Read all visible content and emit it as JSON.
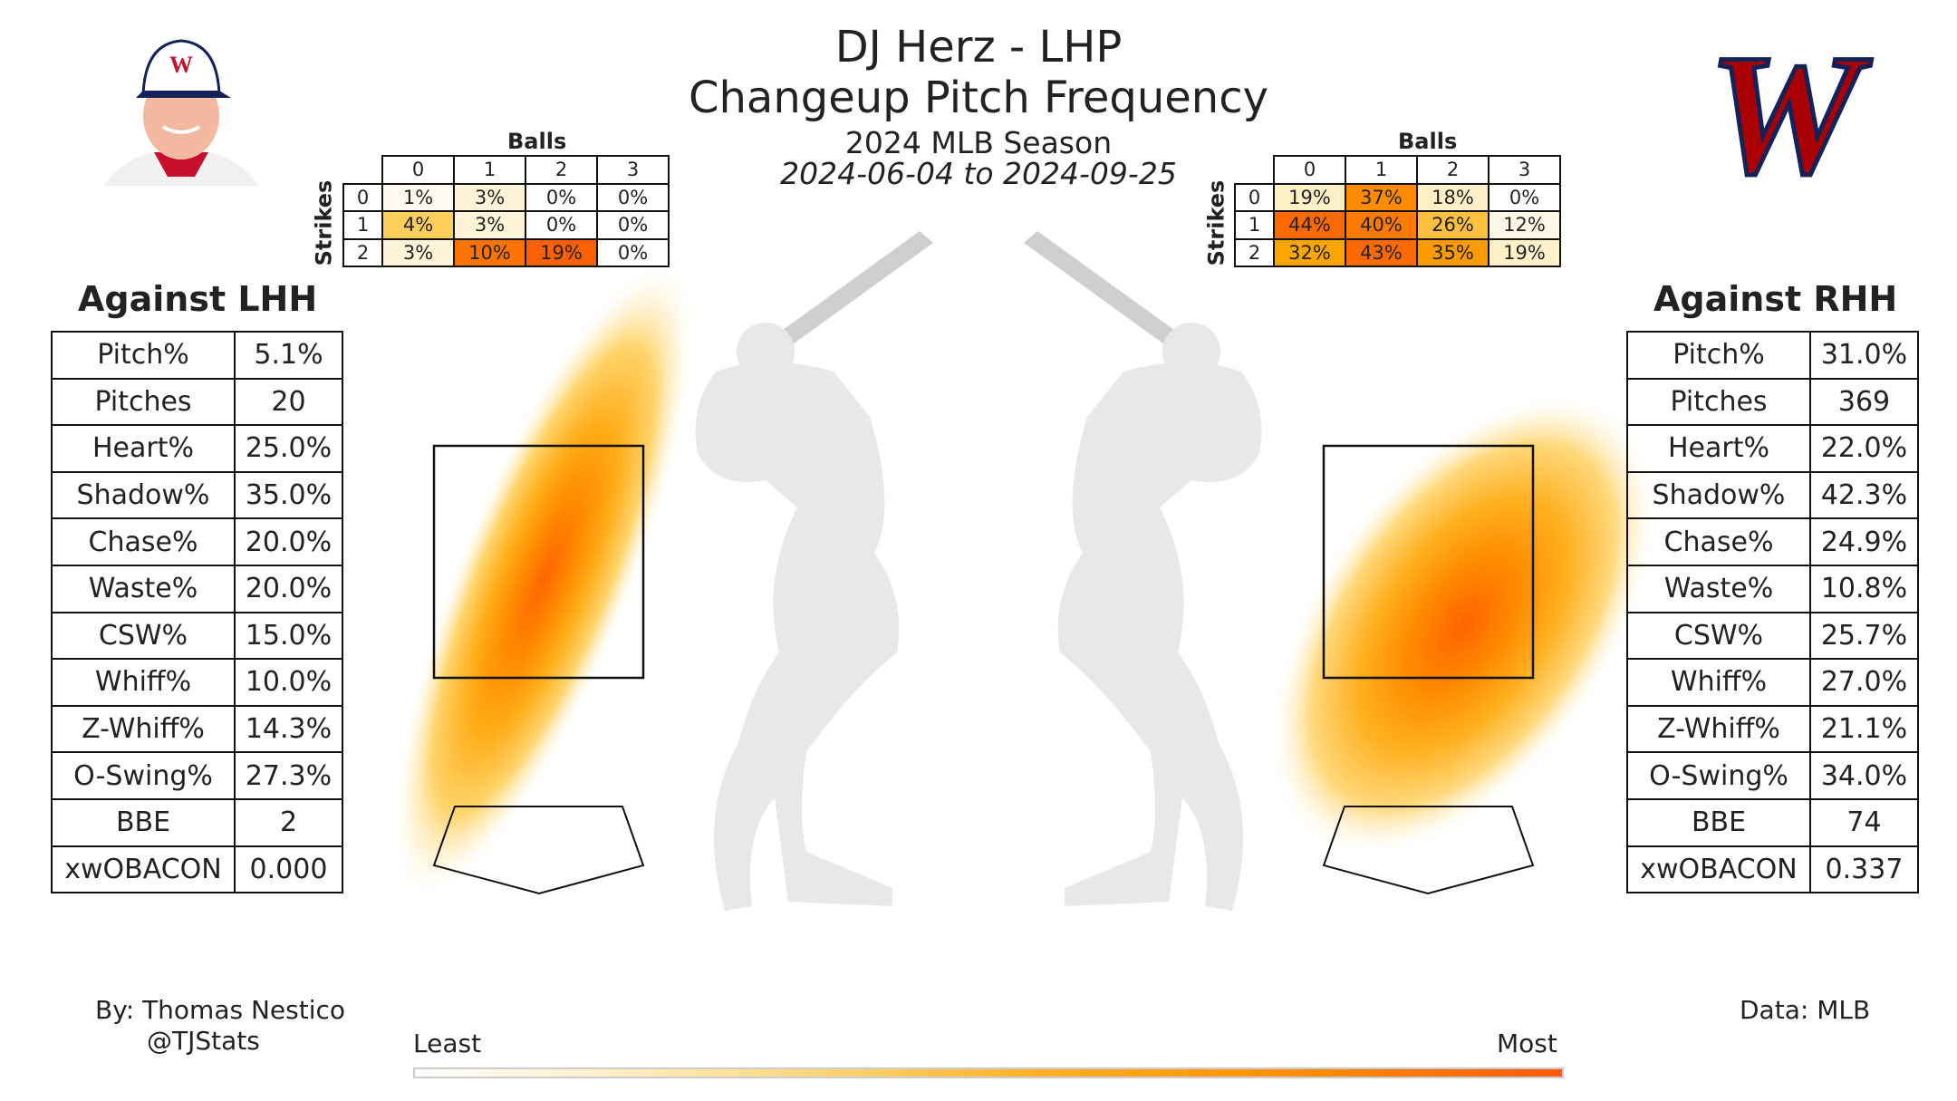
{
  "header": {
    "title_line1": "DJ Herz - LHP",
    "title_line2": "Changeup Pitch Frequency",
    "season": "2024 MLB Season",
    "date_range": "2024-06-04 to 2024-09-25"
  },
  "left_panel": {
    "title": "Against LHH",
    "stats": [
      {
        "label": "Pitch%",
        "value": "5.1%"
      },
      {
        "label": "Pitches",
        "value": "20"
      },
      {
        "label": "Heart%",
        "value": "25.0%"
      },
      {
        "label": "Shadow%",
        "value": "35.0%"
      },
      {
        "label": "Chase%",
        "value": "20.0%"
      },
      {
        "label": "Waste%",
        "value": "20.0%"
      },
      {
        "label": "CSW%",
        "value": "15.0%"
      },
      {
        "label": "Whiff%",
        "value": "10.0%"
      },
      {
        "label": "Z-Whiff%",
        "value": "14.3%"
      },
      {
        "label": "O-Swing%",
        "value": "27.3%"
      },
      {
        "label": "BBE",
        "value": "2"
      },
      {
        "label": "xwOBACON",
        "value": "0.000"
      }
    ],
    "count_table": {
      "balls_label": "Balls",
      "strikes_label": "Strikes",
      "balls": [
        "0",
        "1",
        "2",
        "3"
      ],
      "strikes": [
        "0",
        "1",
        "2"
      ],
      "cells": [
        [
          "1%",
          "3%",
          "0%",
          "0%"
        ],
        [
          "4%",
          "3%",
          "0%",
          "0%"
        ],
        [
          "3%",
          "10%",
          "19%",
          "0%"
        ]
      ],
      "colors": [
        [
          "#fffaf0",
          "#fff3d9",
          "#ffffff",
          "#ffffff"
        ],
        [
          "#ffcf5c",
          "#fff3d9",
          "#ffffff",
          "#ffffff"
        ],
        [
          "#fff3d9",
          "#ff7300",
          "#ff6000",
          "#ffffff"
        ]
      ]
    }
  },
  "right_panel": {
    "title": "Against RHH",
    "stats": [
      {
        "label": "Pitch%",
        "value": "31.0%"
      },
      {
        "label": "Pitches",
        "value": "369"
      },
      {
        "label": "Heart%",
        "value": "22.0%"
      },
      {
        "label": "Shadow%",
        "value": "42.3%"
      },
      {
        "label": "Chase%",
        "value": "24.9%"
      },
      {
        "label": "Waste%",
        "value": "10.8%"
      },
      {
        "label": "CSW%",
        "value": "25.7%"
      },
      {
        "label": "Whiff%",
        "value": "27.0%"
      },
      {
        "label": "Z-Whiff%",
        "value": "21.1%"
      },
      {
        "label": "O-Swing%",
        "value": "34.0%"
      },
      {
        "label": "BBE",
        "value": "74"
      },
      {
        "label": "xwOBACON",
        "value": "0.337"
      }
    ],
    "count_table": {
      "balls_label": "Balls",
      "strikes_label": "Strikes",
      "balls": [
        "0",
        "1",
        "2",
        "3"
      ],
      "strikes": [
        "0",
        "1",
        "2"
      ],
      "cells": [
        [
          "19%",
          "37%",
          "18%",
          "0%"
        ],
        [
          "44%",
          "40%",
          "26%",
          "12%"
        ],
        [
          "32%",
          "43%",
          "35%",
          "19%"
        ]
      ],
      "colors": [
        [
          "#fff0c8",
          "#ff8c00",
          "#fff0c8",
          "#ffffff"
        ],
        [
          "#ff6a00",
          "#ff7a00",
          "#ffc040",
          "#fff8e8"
        ],
        [
          "#ffa500",
          "#ff6a00",
          "#ff9a00",
          "#fff0c8"
        ]
      ]
    }
  },
  "chart_data": {
    "type": "heatmap",
    "description_series": [
      {
        "name": "Against LHH",
        "hot_spot": "low-middle of zone, streak from up-in to low-away"
      },
      {
        "name": "Against RHH",
        "hot_spot": "middle-low of zone extending up-away"
      }
    ],
    "colorbar": {
      "min_label": "Least",
      "max_label": "Most",
      "colors": [
        "#ffffff",
        "#ffd77a",
        "#ff8c00",
        "#ff5a00"
      ]
    }
  },
  "footer": {
    "author": "By: Thomas Nestico",
    "handle": "@TJStats",
    "source": "Data: MLB",
    "colorbar_min": "Least",
    "colorbar_max": "Most"
  },
  "logos": {
    "player_photo": "player-headshot-icon",
    "team_logo": "nationals-w-logo-icon",
    "team_logo_color": "#ab0003",
    "team_logo_outline": "#14225a"
  }
}
